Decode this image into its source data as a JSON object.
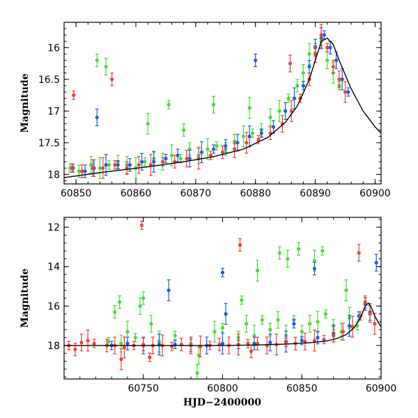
{
  "chart_data": [
    {
      "type": "scatter",
      "panel": "top",
      "xlabel": "",
      "ylabel": "Magnitude",
      "xlim": [
        60848,
        60901
      ],
      "ylim": [
        18.15,
        15.6
      ],
      "y_inverted": true,
      "xticks": [
        60850,
        60860,
        60870,
        60880,
        60890,
        60900
      ],
      "xtick_labels": [
        "60850",
        "60860",
        "60870",
        "60880",
        "60890",
        "60900"
      ],
      "yticks": [
        16,
        16.5,
        17,
        17.5,
        18
      ],
      "ytick_labels": [
        "16",
        "16.5",
        "17",
        "17.5",
        "18"
      ],
      "series": [
        {
          "color": "#44dd33",
          "x": [
            60849.0,
            60850.5,
            60852.5,
            60854.0,
            60855.5,
            60857.0,
            60858.5,
            60860.0,
            60861.5,
            60863.0,
            60864.5,
            60866.0,
            60867.5,
            60869.0,
            60870.5,
            60872.0,
            60873.5,
            60875.0,
            60876.5,
            60878.0,
            60879.5,
            60881.0,
            60882.5,
            60884.0,
            60885.5,
            60887.0,
            60888.0,
            60889.0,
            60890.0,
            60891.0,
            60892.0,
            60893.0,
            60894.0,
            60853.5,
            60855.0,
            60862.0,
            60865.5,
            60868.0,
            60873.0,
            60879.0
          ],
          "y": [
            17.9,
            17.95,
            17.85,
            17.9,
            17.85,
            17.8,
            17.85,
            17.9,
            17.8,
            17.75,
            17.8,
            17.7,
            17.75,
            17.6,
            17.7,
            17.6,
            17.55,
            17.6,
            17.5,
            17.4,
            17.35,
            17.3,
            17.1,
            17.0,
            16.8,
            16.6,
            16.4,
            16.1,
            16.0,
            15.9,
            16.2,
            16.4,
            16.6,
            16.2,
            16.3,
            17.2,
            16.9,
            17.3,
            16.9,
            16.95
          ]
        },
        {
          "color": "#1a5be8",
          "x": [
            60849.5,
            60851.5,
            60853.0,
            60855.0,
            60857.0,
            60859.0,
            60861.0,
            60863.0,
            60865.0,
            60867.0,
            60869.0,
            60871.0,
            60873.0,
            60875.0,
            60877.0,
            60879.0,
            60881.0,
            60883.0,
            60885.0,
            60886.5,
            60888.0,
            60889.0,
            60890.0,
            60891.0,
            60891.5,
            60892.5,
            60893.5,
            60894.5,
            60895.5,
            60880.0,
            60853.5
          ],
          "y": [
            17.9,
            17.95,
            17.9,
            17.85,
            17.85,
            17.85,
            17.8,
            17.8,
            17.75,
            17.7,
            17.75,
            17.65,
            17.6,
            17.55,
            17.5,
            17.4,
            17.35,
            17.25,
            17.0,
            16.8,
            16.6,
            16.3,
            16.0,
            15.85,
            15.8,
            16.0,
            16.2,
            16.5,
            16.7,
            16.2,
            17.1
          ]
        },
        {
          "color": "#f04030",
          "x": [
            60849.3,
            60851.0,
            60852.8,
            60854.5,
            60856.5,
            60858.5,
            60860.5,
            60862.5,
            60864.5,
            60866.5,
            60868.5,
            60870.5,
            60872.5,
            60874.5,
            60876.5,
            60878.5,
            60880.5,
            60882.5,
            60884.5,
            60886.0,
            60887.5,
            60889.0,
            60890.0,
            60891.0,
            60892.0,
            60893.0,
            60894.0,
            60895.0,
            60849.6,
            60856.0,
            60885.8
          ],
          "y": [
            17.9,
            17.95,
            17.9,
            17.9,
            17.85,
            17.9,
            17.85,
            17.85,
            17.8,
            17.8,
            17.75,
            17.75,
            17.7,
            17.65,
            17.6,
            17.5,
            17.45,
            17.35,
            17.2,
            17.0,
            16.8,
            16.5,
            16.1,
            15.8,
            16.0,
            16.3,
            16.5,
            16.7,
            16.75,
            16.5,
            16.25
          ]
        }
      ],
      "model_curve": {
        "x": [
          60848,
          60855,
          60862,
          60868,
          60873,
          60878,
          60882,
          60885,
          60887,
          60889,
          60890,
          60891,
          60892,
          60893,
          60894,
          60896,
          60898,
          60900,
          60901
        ],
        "y": [
          18.05,
          17.96,
          17.88,
          17.8,
          17.72,
          17.6,
          17.42,
          17.18,
          16.92,
          16.5,
          16.2,
          15.9,
          15.85,
          15.95,
          16.2,
          16.65,
          17.0,
          17.25,
          17.35
        ]
      }
    },
    {
      "type": "scatter",
      "panel": "bottom",
      "xlabel": "HJD−2400000",
      "ylabel": "Magnitude",
      "xlim": [
        60700,
        60900
      ],
      "ylim": [
        19.7,
        11.5
      ],
      "y_inverted": true,
      "xticks": [
        60750,
        60800,
        60850,
        60900
      ],
      "xtick_labels": [
        "60750",
        "60800",
        "60850",
        "60900"
      ],
      "yticks": [
        12,
        14,
        16,
        18
      ],
      "ytick_labels": [
        "12",
        "14",
        "16",
        "18"
      ],
      "series": [
        {
          "color": "#44dd33",
          "x": [
            60728,
            60732,
            60736,
            60740,
            60745,
            60750,
            60755,
            60760,
            60770,
            60780,
            60785,
            60795,
            60800,
            60810,
            60815,
            60820,
            60825,
            60830,
            60835,
            60840,
            60845,
            60850,
            60855,
            60860,
            60865,
            60870,
            60875,
            60880,
            60885,
            60735,
            60748,
            60822,
            60812,
            60836,
            60841,
            60858,
            60863,
            60848,
            60784,
            60878
          ],
          "y": [
            17.8,
            16.3,
            17.9,
            17.3,
            17.6,
            15.6,
            16.9,
            17.8,
            17.5,
            17.9,
            18.5,
            17.3,
            17.1,
            17.6,
            16.9,
            17.5,
            16.7,
            17.2,
            16.7,
            17.5,
            16.7,
            17.3,
            16.9,
            16.8,
            16.4,
            17.0,
            17.3,
            16.6,
            17.0,
            15.8,
            16.0,
            14.2,
            15.7,
            13.3,
            13.6,
            13.7,
            13.2,
            13.1,
            19.4,
            15.2
          ]
        },
        {
          "color": "#1a5be8",
          "x": [
            60730,
            60740,
            60750,
            60760,
            60770,
            60780,
            60790,
            60800,
            60810,
            60820,
            60830,
            60840,
            60850,
            60860,
            60870,
            60880,
            60886,
            60890,
            60893,
            60766,
            60800,
            60858,
            60897,
            60802,
            60845
          ],
          "y": [
            18.0,
            17.9,
            18.0,
            17.95,
            17.95,
            18.0,
            18.0,
            17.9,
            17.95,
            17.9,
            17.85,
            17.8,
            17.75,
            17.6,
            17.4,
            17.0,
            16.5,
            15.9,
            16.3,
            15.2,
            14.3,
            14.1,
            13.8,
            16.4,
            16.9
          ]
        },
        {
          "color": "#f04030",
          "x": [
            60703,
            60707,
            60711,
            60715,
            60719,
            60727,
            60732,
            60738,
            60744,
            60750,
            60756,
            60762,
            60768,
            60774,
            60780,
            60786,
            60792,
            60798,
            60804,
            60810,
            60816,
            60822,
            60828,
            60834,
            60840,
            60846,
            60852,
            60858,
            60864,
            60870,
            60876,
            60882,
            60887,
            60890,
            60893,
            60896,
            60749,
            60811,
            60886,
            60736,
            60754,
            60818
          ],
          "y": [
            18.0,
            18.2,
            17.85,
            17.75,
            17.9,
            18.0,
            18.0,
            18.1,
            18.0,
            17.95,
            18.0,
            18.0,
            18.05,
            17.95,
            18.0,
            18.05,
            18.0,
            17.95,
            18.0,
            17.95,
            17.9,
            17.9,
            18.0,
            17.95,
            17.85,
            17.9,
            17.8,
            17.75,
            17.7,
            17.5,
            17.3,
            17.05,
            16.5,
            15.8,
            16.4,
            16.9,
            11.9,
            12.9,
            13.3,
            18.7,
            18.6,
            18.3
          ]
        }
      ],
      "model_curve": {
        "x": [
          60700,
          60720,
          60740,
          60760,
          60780,
          60800,
          60820,
          60840,
          60855,
          60865,
          60872,
          60878,
          60883,
          60887,
          60890,
          60892,
          60894,
          60896,
          60898,
          60900
        ],
        "y": [
          18.0,
          18.0,
          18.0,
          18.0,
          18.0,
          18.0,
          17.98,
          17.93,
          17.86,
          17.78,
          17.65,
          17.45,
          17.1,
          16.6,
          16.0,
          15.85,
          16.1,
          16.5,
          16.8,
          17.05
        ]
      }
    }
  ]
}
